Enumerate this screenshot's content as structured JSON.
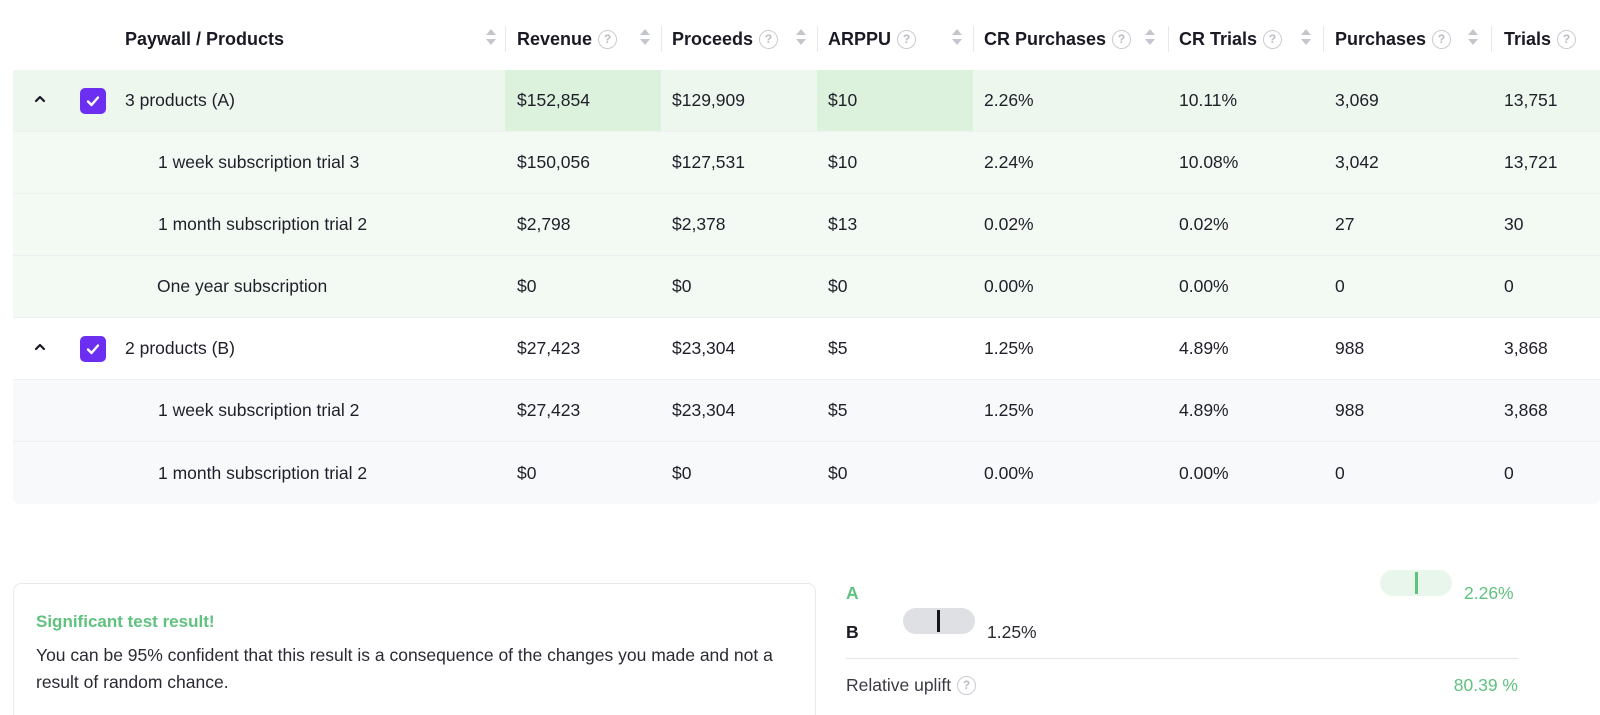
{
  "table": {
    "columns": [
      {
        "key": "name",
        "label": "Paywall / Products",
        "help": false
      },
      {
        "key": "revenue",
        "label": "Revenue",
        "help": true
      },
      {
        "key": "proceeds",
        "label": "Proceeds",
        "help": true
      },
      {
        "key": "arppu",
        "label": "ARPPU",
        "help": true
      },
      {
        "key": "cr_purchases",
        "label": "CR Purchases",
        "help": true
      },
      {
        "key": "cr_trials",
        "label": "CR Trials",
        "help": true
      },
      {
        "key": "purchases",
        "label": "Purchases",
        "help": true
      },
      {
        "key": "trials",
        "label": "Trials",
        "help": true
      }
    ],
    "groups": [
      {
        "name": "3 products (A)",
        "checked": true,
        "expanded": true,
        "revenue": "$152,854",
        "proceeds": "$129,909",
        "arppu": "$10",
        "cr_purchases": "2.26%",
        "cr_trials": "10.11%",
        "purchases": "3,069",
        "trials": "13,751",
        "children": [
          {
            "name": "1 week subscription trial 3",
            "revenue": "$150,056",
            "proceeds": "$127,531",
            "arppu": "$10",
            "cr_purchases": "2.24%",
            "cr_trials": "10.08%",
            "purchases": "3,042",
            "trials": "13,721"
          },
          {
            "name": "1 month subscription trial 2",
            "revenue": "$2,798",
            "proceeds": "$2,378",
            "arppu": "$13",
            "cr_purchases": "0.02%",
            "cr_trials": "0.02%",
            "purchases": "27",
            "trials": "30"
          },
          {
            "name": "One year subscription",
            "revenue": "$0",
            "proceeds": "$0",
            "arppu": "$0",
            "cr_purchases": "0.00%",
            "cr_trials": "0.00%",
            "purchases": "0",
            "trials": "0"
          }
        ]
      },
      {
        "name": "2 products (B)",
        "checked": true,
        "expanded": true,
        "revenue": "$27,423",
        "proceeds": "$23,304",
        "arppu": "$5",
        "cr_purchases": "1.25%",
        "cr_trials": "4.89%",
        "purchases": "988",
        "trials": "3,868",
        "children": [
          {
            "name": "1 week subscription trial 2",
            "revenue": "$27,423",
            "proceeds": "$23,304",
            "arppu": "$5",
            "cr_purchases": "1.25%",
            "cr_trials": "4.89%",
            "purchases": "988",
            "trials": "3,868"
          },
          {
            "name": "1 month subscription trial 2",
            "revenue": "$0",
            "proceeds": "$0",
            "arppu": "$0",
            "cr_purchases": "0.00%",
            "cr_trials": "0.00%",
            "purchases": "0",
            "trials": "0"
          }
        ]
      }
    ]
  },
  "result_card": {
    "title": "Significant test result!",
    "text": "You can be 95% confident that this result is a consequence of the changes you made and not a result of random chance."
  },
  "comparison": {
    "a_label": "A",
    "a_value": "2.26%",
    "b_label": "B",
    "b_value": "1.25%",
    "uplift_label": "Relative uplift",
    "uplift_value": "80.39 %"
  },
  "colors": {
    "accent_purple": "#6c2ff2",
    "success_green": "#5fc27e",
    "highlight_green": "#dcf2dc"
  }
}
